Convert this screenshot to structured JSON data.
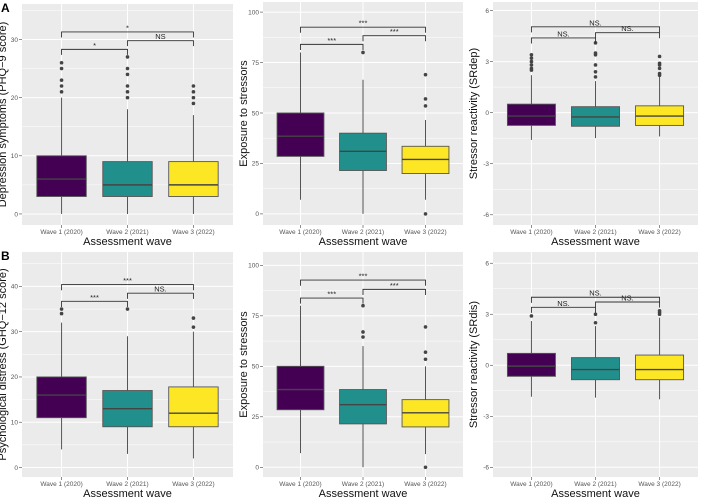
{
  "colors": {
    "wave1": "#440154",
    "wave2": "#21908C",
    "wave3": "#FDE725",
    "panel_bg": "#EBEBEB"
  },
  "chart_data": [
    {
      "type": "box",
      "panel": "A",
      "ylabel": "Depression symptoms (PHQ−9 score)",
      "xlabel": "Assessment wave",
      "categories": [
        "Wave 1 (2020)",
        "Wave 2 (2021)",
        "Wave 3 (2022)"
      ],
      "ylim": [
        -1.9,
        36.1
      ],
      "yticks": [
        0,
        10,
        20,
        30
      ],
      "boxes": [
        {
          "low": 0,
          "q1": 3,
          "median": 6,
          "q3": 10,
          "high": 20,
          "outliers": [
            21,
            22,
            23,
            25,
            26
          ]
        },
        {
          "low": 0,
          "q1": 3,
          "median": 5,
          "q3": 9,
          "high": 18,
          "outliers": [
            20,
            21,
            22,
            24,
            25,
            27
          ]
        },
        {
          "low": 0,
          "q1": 3,
          "median": 5,
          "q3": 9,
          "high": 17,
          "outliers": [
            19,
            20,
            21,
            22
          ]
        }
      ],
      "comparisons": [
        {
          "from": 0,
          "to": 1,
          "y": 28.3,
          "label": "*"
        },
        {
          "from": 1,
          "to": 2,
          "y": 29.8,
          "label": "NS"
        },
        {
          "from": 0,
          "to": 2,
          "y": 31.3,
          "label": "*"
        }
      ]
    },
    {
      "type": "box",
      "panel": "",
      "ylabel": "Exposure to stressors",
      "xlabel": "Assessment wave",
      "categories": [
        "Wave 1 (2020)",
        "Wave 2 (2021)",
        "Wave 3 (2022)"
      ],
      "ylim": [
        -5.5,
        105
      ],
      "yticks": [
        0,
        25,
        50,
        75,
        100
      ],
      "boxes": [
        {
          "low": 7,
          "q1": 28.5,
          "median": 38.5,
          "q3": 50,
          "high": 80,
          "outliers": []
        },
        {
          "low": 0,
          "q1": 21.5,
          "median": 31,
          "q3": 40,
          "high": 66.5,
          "outliers": [
            80
          ]
        },
        {
          "low": 7,
          "q1": 20,
          "median": 27,
          "q3": 33.5,
          "high": 46.5,
          "outliers": [
            0,
            53.5,
            57,
            69
          ]
        }
      ],
      "comparisons": [
        {
          "from": 0,
          "to": 1,
          "y": 84,
          "label": "***"
        },
        {
          "from": 1,
          "to": 2,
          "y": 88.3,
          "label": "***"
        },
        {
          "from": 0,
          "to": 2,
          "y": 92.5,
          "label": "***"
        }
      ]
    },
    {
      "type": "box",
      "panel": "",
      "ylabel": "Stressor reactivity (SRdep)",
      "xlabel": "Assessment wave",
      "categories": [
        "Wave 1 (2020)",
        "Wave 2 (2021)",
        "Wave 3 (2022)"
      ],
      "ylim": [
        -6.6,
        6.5
      ],
      "yticks": [
        -6,
        -3,
        0,
        3,
        6
      ],
      "boxes": [
        {
          "low": -1.6,
          "q1": -0.75,
          "median": -0.2,
          "q3": 0.5,
          "high": 2.2,
          "outliers": [
            2.5,
            2.6,
            2.8,
            3.0,
            3.2,
            3.4
          ]
        },
        {
          "low": -1.5,
          "q1": -0.8,
          "median": -0.25,
          "q3": 0.35,
          "high": 1.85,
          "outliers": [
            2.1,
            2.4,
            2.8,
            3.4,
            3.5,
            4.1
          ]
        },
        {
          "low": -1.4,
          "q1": -0.75,
          "median": -0.2,
          "q3": 0.4,
          "high": 2.1,
          "outliers": [
            2.2,
            2.3,
            2.6,
            2.8,
            2.9,
            3.3
          ]
        }
      ],
      "comparisons": [
        {
          "from": 0,
          "to": 1,
          "y": 4.39,
          "label": "NS."
        },
        {
          "from": 1,
          "to": 2,
          "y": 4.7,
          "label": "NS."
        },
        {
          "from": 0,
          "to": 2,
          "y": 5.04,
          "label": "NS."
        }
      ]
    },
    {
      "type": "box",
      "panel": "B",
      "ylabel": "Psychological distress (GHQ−12 score)",
      "xlabel": "Assessment wave",
      "categories": [
        "Wave 1 (2020)",
        "Wave 2 (2021)",
        "Wave 3 (2022)"
      ],
      "ylim": [
        -2.1,
        47.6
      ],
      "yticks": [
        0,
        10,
        20,
        30,
        40
      ],
      "boxes": [
        {
          "low": 4,
          "q1": 11,
          "median": 16,
          "q3": 20,
          "high": 32,
          "outliers": [
            34,
            35
          ]
        },
        {
          "low": 3,
          "q1": 9,
          "median": 13,
          "q3": 17,
          "high": 29,
          "outliers": [
            35
          ]
        },
        {
          "low": 2,
          "q1": 9,
          "median": 12,
          "q3": 17.8,
          "high": 30,
          "outliers": [
            31,
            33
          ]
        }
      ],
      "comparisons": [
        {
          "from": 0,
          "to": 1,
          "y": 36.7,
          "label": "***"
        },
        {
          "from": 1,
          "to": 2,
          "y": 38.5,
          "label": "NS."
        },
        {
          "from": 0,
          "to": 2,
          "y": 40.4,
          "label": "***"
        }
      ]
    },
    {
      "type": "box",
      "panel": "",
      "ylabel": "Exposure to stressors",
      "xlabel": "Assessment wave",
      "categories": [
        "Wave 1 (2020)",
        "Wave 2 (2021)",
        "Wave 3 (2022)"
      ],
      "ylim": [
        -4.8,
        106.6
      ],
      "yticks": [
        0,
        25,
        50,
        75,
        100
      ],
      "boxes": [
        {
          "low": 7,
          "q1": 28.5,
          "median": 38.5,
          "q3": 50,
          "high": 80,
          "outliers": []
        },
        {
          "low": 0,
          "q1": 21.5,
          "median": 31,
          "q3": 38.5,
          "high": 60,
          "outliers": [
            64.5,
            67,
            80
          ]
        },
        {
          "low": 6.5,
          "q1": 20,
          "median": 27,
          "q3": 33.5,
          "high": 50,
          "outliers": [
            0,
            53.5,
            57,
            69.5
          ]
        }
      ],
      "comparisons": [
        {
          "from": 0,
          "to": 1,
          "y": 83.8,
          "label": "***"
        },
        {
          "from": 1,
          "to": 2,
          "y": 88.1,
          "label": "***"
        },
        {
          "from": 0,
          "to": 2,
          "y": 92.7,
          "label": "***"
        }
      ]
    },
    {
      "type": "box",
      "panel": "",
      "ylabel": "Stressor reactivity (SRdis)",
      "xlabel": "Assessment wave",
      "categories": [
        "Wave 1 (2020)",
        "Wave 2 (2021)",
        "Wave 3 (2022)"
      ],
      "ylim": [
        -6.57,
        6.66
      ],
      "yticks": [
        -6,
        -3,
        0,
        3,
        6
      ],
      "boxes": [
        {
          "low": -1.85,
          "q1": -0.65,
          "median": -0.05,
          "q3": 0.7,
          "high": 2.6,
          "outliers": [
            2.9
          ]
        },
        {
          "low": -1.9,
          "q1": -0.85,
          "median": -0.25,
          "q3": 0.45,
          "high": 2.3,
          "outliers": [
            2.5,
            3.0
          ]
        },
        {
          "low": -2.0,
          "q1": -0.85,
          "median": -0.25,
          "q3": 0.6,
          "high": 2.8,
          "outliers": [
            3.0,
            3.1,
            3.2
          ]
        }
      ],
      "comparisons": [
        {
          "from": 0,
          "to": 1,
          "y": 3.41,
          "label": "NS."
        },
        {
          "from": 1,
          "to": 2,
          "y": 3.72,
          "label": "NS."
        },
        {
          "from": 0,
          "to": 2,
          "y": 4.0,
          "label": "NS."
        }
      ]
    }
  ]
}
